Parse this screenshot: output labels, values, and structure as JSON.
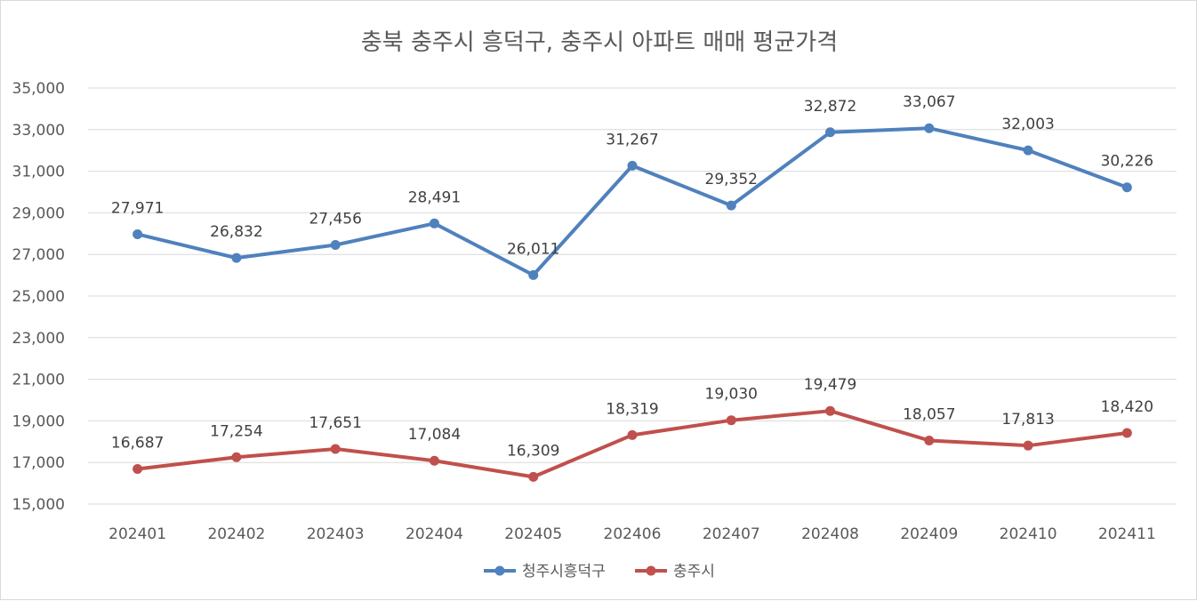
{
  "chart_data": {
    "type": "line",
    "title": "충북 충주시 흥덕구, 충주시 아파트 매매 평균가격",
    "xlabel": "",
    "ylabel": "",
    "categories": [
      "202401",
      "202402",
      "202403",
      "202404",
      "202405",
      "202406",
      "202407",
      "202408",
      "202409",
      "202410",
      "202411"
    ],
    "ylim": [
      15000,
      35000
    ],
    "yticks": [
      15000,
      17000,
      19000,
      21000,
      23000,
      25000,
      27000,
      29000,
      31000,
      33000,
      35000
    ],
    "ytick_labels": [
      "15,000",
      "17,000",
      "19,000",
      "21,000",
      "23,000",
      "25,000",
      "27,000",
      "29,000",
      "31,000",
      "33,000",
      "35,000"
    ],
    "grid": true,
    "legend_position": "bottom",
    "series": [
      {
        "name": "청주시흥덕구",
        "color": "#4f81bd",
        "values": [
          27971,
          26832,
          27456,
          28491,
          26011,
          31267,
          29352,
          32872,
          33067,
          32003,
          30226
        ],
        "labels": [
          "27,971",
          "26,832",
          "27,456",
          "28,491",
          "26,011",
          "31,267",
          "29,352",
          "32,872",
          "33,067",
          "32,003",
          "30,226"
        ]
      },
      {
        "name": "충주시",
        "color": "#c0504d",
        "values": [
          16687,
          17254,
          17651,
          17084,
          16309,
          18319,
          19030,
          19479,
          18057,
          17813,
          18420
        ],
        "labels": [
          "16,687",
          "17,254",
          "17,651",
          "17,084",
          "16,309",
          "18,319",
          "19,030",
          "19,479",
          "18,057",
          "17,813",
          "18,420"
        ]
      }
    ]
  }
}
